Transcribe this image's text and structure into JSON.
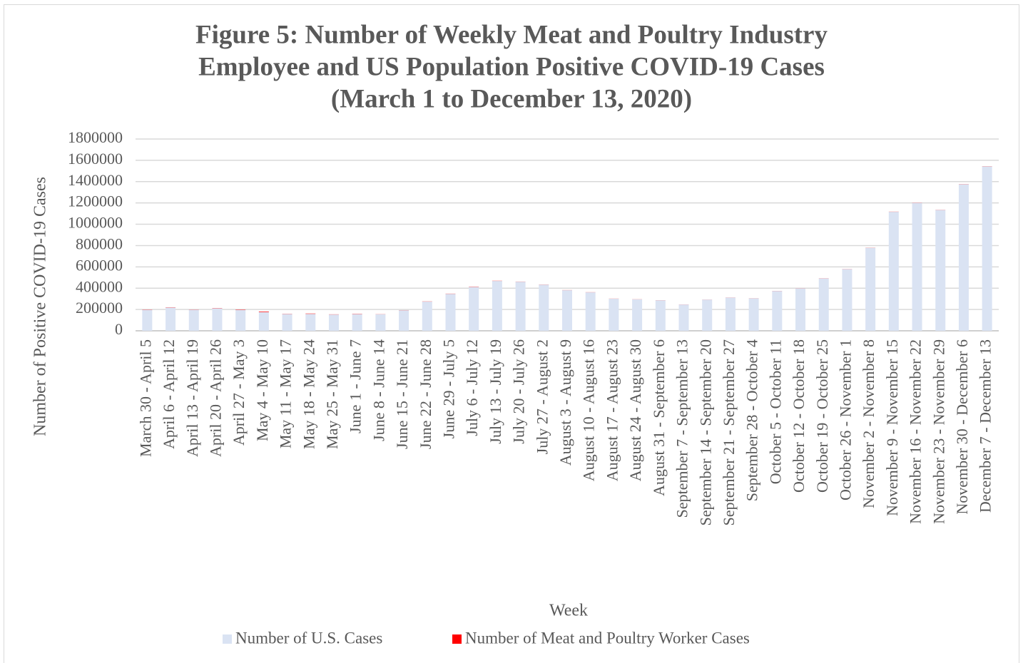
{
  "chart_data": {
    "type": "stacked_bar",
    "title": [
      "Figure 5: Number of Weekly Meat and Poultry Industry",
      "Employee and US Population Positive COVID-19 Cases",
      "(March 1 to December 13, 2020)"
    ],
    "x_label": "Week",
    "y_label": "Number of Positive COVID-19 Cases",
    "categories": [
      "March 30 - April 5",
      "April 6 - April 12",
      "April 13 - April 19",
      "April 20 - April 26",
      "April 27 - May 3",
      "May 4 - May 10",
      "May 11 - May 17",
      "May 18 - May 24",
      "May 25 - May 31",
      "June 1 - June 7",
      "June 8 - June 14",
      "June 15 - June 21",
      "June 22 - June 28",
      "June 29 - July 5",
      "July 6 - July 12",
      "July 13 - July 19",
      "July 20 - July 26",
      "July 27 - August 2",
      "August 3 - August 9",
      "August 10 - August 16",
      "August 17 - August 23",
      "August 24 - August 30",
      "August 31 - September 6",
      "September 7 - September 13",
      "September 14 - September 20",
      "September 21 - September 27",
      "September 28 - October 4",
      "October 5 - October 11",
      "October 12 - October 18",
      "October 19 - October 25",
      "October 26 - November 1",
      "November 2 - November 8",
      "November 9 - November 15",
      "November 16 - November 22",
      "November 23 - November 29",
      "November 30 - December 6",
      "December 7 - December 13"
    ],
    "series": [
      {
        "name": "Number of U.S. Cases",
        "color": "#dae3f3",
        "values": [
          198000,
          219000,
          199000,
          212000,
          197000,
          176000,
          159000,
          159000,
          153000,
          158000,
          155000,
          193000,
          274000,
          347000,
          413000,
          468000,
          461000,
          434000,
          381000,
          361000,
          301000,
          295000,
          287000,
          247000,
          293000,
          312000,
          305000,
          374000,
          399000,
          492000,
          579000,
          779000,
          1117000,
          1201000,
          1134000,
          1376000,
          1544000
        ]
      },
      {
        "name": "Number of Meat and Poultry Worker Cases",
        "color": "#ff0000",
        "values": [
          2000,
          2000,
          1500,
          2000,
          3000,
          5000,
          1500,
          3000,
          1500,
          2000,
          1000,
          1000,
          1500,
          1500,
          2000,
          1500,
          1000,
          1000,
          1000,
          1000,
          800,
          800,
          700,
          600,
          600,
          700,
          700,
          800,
          800,
          900,
          900,
          1000,
          1200,
          1200,
          1000,
          1200,
          1200
        ]
      }
    ],
    "ylim": [
      0,
      1800000
    ],
    "yticks": [
      0,
      200000,
      400000,
      600000,
      800000,
      1000000,
      1200000,
      1400000,
      1600000,
      1800000
    ],
    "grid": true
  }
}
